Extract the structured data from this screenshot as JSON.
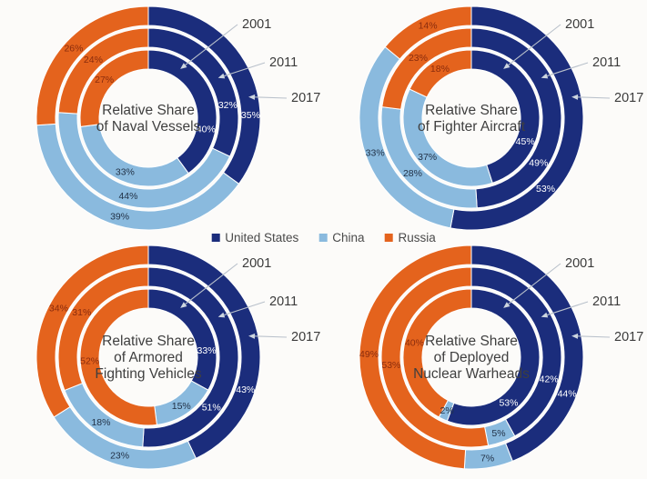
{
  "page": {
    "background": "#fcfbf9"
  },
  "series": [
    {
      "name": "United States",
      "color": "#1b2d7c",
      "label_color": "#ffffff"
    },
    {
      "name": "China",
      "color": "#8abade",
      "label_color": "#223247"
    },
    {
      "name": "Russia",
      "color": "#e4631d",
      "label_color": "#8a2c0d"
    }
  ],
  "year_rings": [
    "2001",
    "2011",
    "2017"
  ],
  "chart_data": [
    {
      "type": "donut",
      "slug": "naval-vessels",
      "title_lines": [
        "Relative Share",
        "of Naval Vessels"
      ],
      "unit": "%",
      "rings": [
        {
          "year": "2001",
          "values": [
            40,
            33,
            27
          ]
        },
        {
          "year": "2011",
          "values": [
            32,
            44,
            24
          ]
        },
        {
          "year": "2017",
          "values": [
            35,
            39,
            26
          ]
        }
      ]
    },
    {
      "type": "donut",
      "slug": "fighter-aircraft",
      "title_lines": [
        "Relative Share",
        "of Fighter Aircraft"
      ],
      "unit": "%",
      "rings": [
        {
          "year": "2001",
          "values": [
            45,
            37,
            18
          ]
        },
        {
          "year": "2011",
          "values": [
            49,
            28,
            23
          ]
        },
        {
          "year": "2017",
          "values": [
            53,
            33,
            14
          ]
        }
      ]
    },
    {
      "type": "donut",
      "slug": "armored-fighting-vehicles",
      "title_lines": [
        "Relative Share",
        "of Armored",
        "Fighting Vehicles"
      ],
      "unit": "%",
      "rings": [
        {
          "year": "2001",
          "values": [
            33,
            15,
            52
          ]
        },
        {
          "year": "2011",
          "values": [
            51,
            18,
            31
          ]
        },
        {
          "year": "2017",
          "values": [
            43,
            23,
            34
          ]
        }
      ]
    },
    {
      "type": "donut",
      "slug": "deployed-nuclear-warheads",
      "title_lines": [
        "Relative Share",
        "of Deployed",
        "Nuclear Warheads"
      ],
      "unit": "%",
      "rings": [
        {
          "year": "2001",
          "values": [
            53,
            2,
            40
          ]
        },
        {
          "year": "2011",
          "values": [
            42,
            5,
            53
          ]
        },
        {
          "year": "2017",
          "values": [
            44,
            7,
            49
          ]
        }
      ]
    }
  ]
}
